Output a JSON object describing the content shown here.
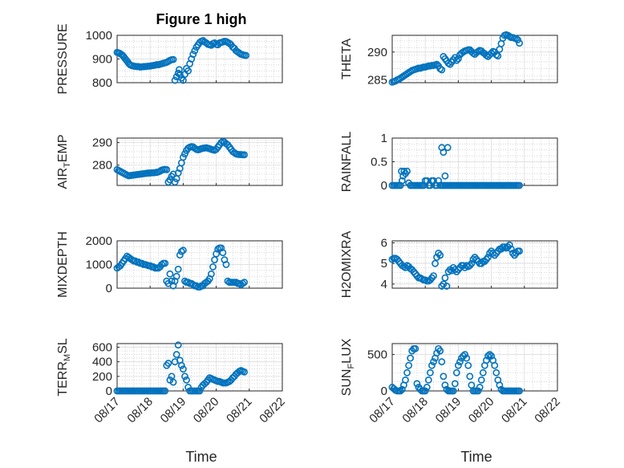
{
  "chart_data": [
    {
      "type": "scatter",
      "title": "Figure 1 high",
      "ylabel": "PRESSURE",
      "xlim": [
        0,
        5
      ],
      "ylim": [
        800,
        1000
      ],
      "yticks": [
        800,
        900,
        1000
      ],
      "xticks": [
        0,
        1,
        2,
        3,
        4,
        5
      ],
      "x": [
        0.0,
        0.04,
        0.08,
        0.12,
        0.16,
        0.2,
        0.24,
        0.28,
        0.32,
        0.36,
        0.4,
        0.45,
        0.5,
        0.55,
        0.6,
        0.65,
        0.7,
        0.75,
        0.8,
        0.85,
        0.9,
        0.95,
        1.0,
        1.05,
        1.1,
        1.15,
        1.2,
        1.25,
        1.3,
        1.35,
        1.4,
        1.45,
        1.5,
        1.55,
        1.6,
        1.65,
        1.7,
        1.75,
        1.8,
        1.85,
        1.88,
        1.9,
        1.95,
        2.0,
        2.05,
        2.1,
        2.15,
        2.2,
        2.25,
        2.3,
        2.35,
        2.4,
        2.45,
        2.5,
        2.55,
        2.6,
        2.65,
        2.7,
        2.75,
        2.8,
        2.85,
        2.9,
        2.95,
        3.0,
        3.05,
        3.1,
        3.15,
        3.2,
        3.25,
        3.3,
        3.35,
        3.4,
        3.45,
        3.5,
        3.55,
        3.6,
        3.65,
        3.7,
        3.75,
        3.8,
        3.85,
        3.9
      ],
      "y": [
        928,
        926,
        924,
        920,
        916,
        910,
        902,
        895,
        888,
        880,
        875,
        872,
        870,
        869,
        868,
        868,
        866,
        867,
        868,
        868,
        869,
        870,
        870,
        872,
        873,
        874,
        876,
        876,
        878,
        880,
        882,
        884,
        886,
        890,
        894,
        897,
        898,
        810,
        825,
        840,
        855,
        835,
        820,
        810,
        835,
        860,
        850,
        880,
        900,
        920,
        935,
        950,
        960,
        970,
        975,
        978,
        972,
        968,
        962,
        960,
        958,
        965,
        968,
        962,
        960,
        968,
        970,
        972,
        975,
        974,
        970,
        966,
        960,
        950,
        945,
        935,
        930,
        925,
        920,
        918,
        916,
        915
      ]
    },
    {
      "type": "scatter",
      "ylabel": "THETA",
      "xlim": [
        0,
        5
      ],
      "ylim": [
        284.5,
        293
      ],
      "yticks": [
        285,
        290
      ],
      "x": [
        0.0,
        0.05,
        0.1,
        0.15,
        0.2,
        0.25,
        0.3,
        0.35,
        0.4,
        0.45,
        0.5,
        0.55,
        0.6,
        0.65,
        0.7,
        0.75,
        0.8,
        0.85,
        0.9,
        0.95,
        1.0,
        1.05,
        1.1,
        1.15,
        1.2,
        1.25,
        1.3,
        1.35,
        1.4,
        1.45,
        1.5,
        1.55,
        1.6,
        1.65,
        1.7,
        1.75,
        1.8,
        1.85,
        1.9,
        1.95,
        2.0,
        2.05,
        2.1,
        2.15,
        2.2,
        2.25,
        2.3,
        2.35,
        2.4,
        2.45,
        2.5,
        2.55,
        2.6,
        2.65,
        2.7,
        2.75,
        2.8,
        2.85,
        2.9,
        2.95,
        3.0,
        3.05,
        3.1,
        3.15,
        3.2,
        3.25,
        3.3,
        3.35,
        3.4,
        3.45,
        3.5,
        3.55,
        3.6,
        3.65,
        3.7,
        3.75,
        3.8,
        3.85
      ],
      "y": [
        284.6,
        284.7,
        284.8,
        285.0,
        285.1,
        285.3,
        285.5,
        285.7,
        285.9,
        286.1,
        286.3,
        286.5,
        286.7,
        286.8,
        286.9,
        287.0,
        287.1,
        287.1,
        287.2,
        287.3,
        287.3,
        287.4,
        287.5,
        287.5,
        287.6,
        287.6,
        287.7,
        287.8,
        287.5,
        287.0,
        286.8,
        289.2,
        288.8,
        288.4,
        288.0,
        287.8,
        288.2,
        288.6,
        289.0,
        288.5,
        288.8,
        289.5,
        289.8,
        290.0,
        290.2,
        290.3,
        290.4,
        290.4,
        290.1,
        289.8,
        289.6,
        289.9,
        290.1,
        290.3,
        290.2,
        289.9,
        289.7,
        289.4,
        289.2,
        289.5,
        289.8,
        290.1,
        290.0,
        289.5,
        289.3,
        290.5,
        291.5,
        292.5,
        293.0,
        293.1,
        293.0,
        292.8,
        292.6,
        292.6,
        292.5,
        292.4,
        292.2,
        291.6
      ]
    },
    {
      "type": "scatter",
      "ylabel": "AIR_TEMP",
      "ylabel_main": "AIR",
      "ylabel_sub": "T",
      "ylabel_rest": "EMP",
      "xlim": [
        0,
        5
      ],
      "ylim": [
        271,
        292
      ],
      "yticks": [
        280,
        290
      ],
      "x": [
        0.0,
        0.05,
        0.1,
        0.15,
        0.2,
        0.25,
        0.3,
        0.35,
        0.4,
        0.45,
        0.5,
        0.55,
        0.6,
        0.65,
        0.7,
        0.75,
        0.8,
        0.85,
        0.9,
        0.95,
        1.0,
        1.05,
        1.1,
        1.15,
        1.2,
        1.25,
        1.3,
        1.35,
        1.4,
        1.45,
        1.5,
        1.55,
        1.6,
        1.65,
        1.7,
        1.75,
        1.8,
        1.85,
        1.9,
        1.95,
        2.0,
        2.05,
        2.1,
        2.15,
        2.2,
        2.25,
        2.3,
        2.35,
        2.4,
        2.45,
        2.5,
        2.55,
        2.6,
        2.65,
        2.7,
        2.75,
        2.8,
        2.85,
        2.9,
        2.95,
        3.0,
        3.05,
        3.1,
        3.15,
        3.2,
        3.25,
        3.3,
        3.35,
        3.4,
        3.45,
        3.5,
        3.55,
        3.6,
        3.65,
        3.7,
        3.75,
        3.8,
        3.85
      ],
      "y": [
        278.0,
        277.6,
        277.2,
        276.8,
        276.4,
        276.0,
        275.6,
        275.3,
        275.4,
        275.5,
        275.6,
        275.7,
        275.8,
        275.9,
        276.0,
        276.1,
        276.2,
        276.3,
        276.4,
        276.5,
        276.5,
        276.6,
        276.6,
        276.7,
        276.8,
        277.0,
        277.3,
        277.8,
        278.0,
        278.1,
        278.0,
        272.5,
        273.5,
        275.0,
        276.0,
        272.5,
        274.0,
        276.5,
        278.5,
        281.0,
        283.5,
        285.0,
        286.5,
        287.5,
        288.0,
        288.2,
        288.1,
        287.5,
        287.0,
        286.8,
        287.0,
        287.3,
        287.5,
        287.6,
        287.7,
        287.5,
        287.3,
        287.0,
        286.8,
        286.6,
        287.0,
        288.0,
        289.0,
        290.0,
        290.5,
        290.2,
        289.5,
        289.0,
        288.0,
        287.0,
        286.0,
        285.5,
        285.0,
        284.8,
        284.7,
        284.7,
        284.6,
        284.6
      ]
    },
    {
      "type": "scatter",
      "ylabel": "RAINFALL",
      "xlim": [
        0,
        5
      ],
      "ylim": [
        0,
        1
      ],
      "yticks": [
        0,
        0.5,
        1
      ],
      "x": [
        0.0,
        0.05,
        0.1,
        0.15,
        0.2,
        0.25,
        0.28,
        0.3,
        0.33,
        0.36,
        0.4,
        0.45,
        0.5,
        0.55,
        0.6,
        0.65,
        0.7,
        0.75,
        0.8,
        0.85,
        0.9,
        0.95,
        1.0,
        1.05,
        1.1,
        1.15,
        1.2,
        1.25,
        1.3,
        1.35,
        1.4,
        1.45,
        1.5,
        1.55,
        1.6,
        1.65,
        1.7,
        1.75,
        1.8,
        1.85,
        1.9,
        1.95,
        2.0,
        2.05,
        2.1,
        2.15,
        2.2,
        2.25,
        2.3,
        2.35,
        2.4,
        2.45,
        2.5,
        2.55,
        2.6,
        2.65,
        2.7,
        2.75,
        2.8,
        2.85,
        2.9,
        2.95,
        3.0,
        3.05,
        3.1,
        3.15,
        3.2,
        3.25,
        3.3,
        3.35,
        3.4,
        3.45,
        3.5,
        3.55,
        3.6,
        3.65,
        3.7,
        3.75,
        3.8,
        3.85,
        1.5,
        1.55,
        1.6,
        1.68
      ],
      "y": [
        0,
        0,
        0,
        0,
        0,
        0,
        0.3,
        0.1,
        0.2,
        0.3,
        0.25,
        0.3,
        0.05,
        0,
        0,
        0,
        0,
        0,
        0,
        0,
        0,
        0,
        0.1,
        0.1,
        0,
        0,
        0.1,
        0.1,
        0,
        0,
        0.1,
        0,
        0,
        0,
        0,
        0,
        0,
        0,
        0,
        0,
        0,
        0,
        0,
        0,
        0,
        0,
        0,
        0,
        0,
        0,
        0,
        0,
        0,
        0,
        0,
        0,
        0,
        0,
        0,
        0,
        0,
        0,
        0,
        0,
        0,
        0,
        0,
        0,
        0,
        0,
        0,
        0,
        0,
        0,
        0,
        0,
        0,
        0,
        0,
        0,
        0.8,
        0.7,
        0.2,
        0.8
      ]
    },
    {
      "type": "scatter",
      "ylabel": "MIXDEPTH",
      "xlim": [
        0,
        5
      ],
      "ylim": [
        0,
        2000
      ],
      "yticks": [
        0,
        1000,
        2000
      ],
      "x": [
        0.0,
        0.05,
        0.1,
        0.15,
        0.2,
        0.25,
        0.3,
        0.35,
        0.4,
        0.45,
        0.5,
        0.55,
        0.6,
        0.65,
        0.7,
        0.75,
        0.8,
        0.85,
        0.9,
        0.95,
        1.0,
        1.05,
        1.1,
        1.15,
        1.2,
        1.25,
        1.3,
        1.35,
        1.4,
        1.45,
        1.5,
        1.55,
        1.6,
        1.65,
        1.7,
        1.75,
        1.8,
        1.85,
        1.9,
        1.95,
        2.0,
        2.05,
        2.1,
        2.15,
        2.2,
        2.25,
        2.3,
        2.35,
        2.4,
        2.45,
        2.5,
        2.55,
        2.6,
        2.65,
        2.7,
        2.75,
        2.8,
        2.85,
        2.9,
        2.95,
        3.0,
        3.05,
        3.1,
        3.15,
        3.2,
        3.25,
        3.3,
        3.35,
        3.4,
        3.45,
        3.5,
        3.55,
        3.6,
        3.65,
        3.7,
        3.75,
        3.8,
        3.85
      ],
      "y": [
        850,
        900,
        950,
        1050,
        1150,
        1250,
        1350,
        1300,
        1250,
        1200,
        1150,
        1150,
        1100,
        1100,
        1050,
        1050,
        1000,
        1000,
        980,
        950,
        950,
        900,
        900,
        850,
        850,
        850,
        900,
        1000,
        1050,
        1050,
        300,
        200,
        600,
        300,
        100,
        300,
        500,
        800,
        1400,
        1550,
        1600,
        300,
        250,
        250,
        200,
        200,
        150,
        100,
        100,
        50,
        50,
        100,
        100,
        200,
        250,
        300,
        400,
        600,
        900,
        1200,
        1450,
        1650,
        1700,
        1700,
        1500,
        1200,
        1000,
        300,
        250,
        250,
        250,
        250,
        250,
        200,
        200,
        150,
        200,
        250
      ]
    },
    {
      "type": "scatter",
      "ylabel": "H2OMIXRA",
      "xlim": [
        0,
        5
      ],
      "ylim": [
        3.8,
        6.1
      ],
      "yticks": [
        4,
        5,
        6
      ],
      "x": [
        0.0,
        0.05,
        0.1,
        0.15,
        0.2,
        0.25,
        0.3,
        0.35,
        0.4,
        0.45,
        0.5,
        0.55,
        0.6,
        0.65,
        0.7,
        0.75,
        0.8,
        0.85,
        0.9,
        0.95,
        1.0,
        1.05,
        1.1,
        1.15,
        1.2,
        1.25,
        1.3,
        1.35,
        1.4,
        1.45,
        1.5,
        1.55,
        1.6,
        1.65,
        1.7,
        1.75,
        1.8,
        1.85,
        1.9,
        1.95,
        2.0,
        2.05,
        2.1,
        2.15,
        2.2,
        2.25,
        2.3,
        2.35,
        2.4,
        2.45,
        2.5,
        2.55,
        2.6,
        2.65,
        2.7,
        2.75,
        2.8,
        2.85,
        2.9,
        2.95,
        3.0,
        3.05,
        3.1,
        3.15,
        3.2,
        3.25,
        3.3,
        3.35,
        3.4,
        3.45,
        3.5,
        3.55,
        3.6,
        3.65,
        3.7,
        3.75,
        3.8,
        3.85
      ],
      "y": [
        5.2,
        5.25,
        5.25,
        5.2,
        5.1,
        5.0,
        4.9,
        4.85,
        4.8,
        4.9,
        4.85,
        4.75,
        4.7,
        4.6,
        4.5,
        4.4,
        4.3,
        4.3,
        4.25,
        4.2,
        4.2,
        4.15,
        4.15,
        4.2,
        4.3,
        4.4,
        5.0,
        5.3,
        5.5,
        5.4,
        3.9,
        4.0,
        4.3,
        3.9,
        4.6,
        4.7,
        4.65,
        4.8,
        4.7,
        4.6,
        4.7,
        4.8,
        4.9,
        4.9,
        4.8,
        4.9,
        4.85,
        4.9,
        5.0,
        5.2,
        5.3,
        5.2,
        5.1,
        5.0,
        5.0,
        5.1,
        5.1,
        5.2,
        5.3,
        5.5,
        5.6,
        5.5,
        5.4,
        5.5,
        5.6,
        5.7,
        5.7,
        5.8,
        5.8,
        5.75,
        5.8,
        5.9,
        5.7,
        5.5,
        5.4,
        5.5,
        5.6,
        5.6
      ]
    },
    {
      "type": "scatter",
      "ylabel": "TERR_MSL",
      "ylabel_main": "TERR",
      "ylabel_sub": "M",
      "ylabel_rest": "SL",
      "xlim": [
        0,
        5
      ],
      "ylim": [
        0,
        650
      ],
      "yticks": [
        0,
        200,
        400,
        600
      ],
      "xticklabels": [
        "08/17",
        "08/18",
        "08/19",
        "08/20",
        "08/21",
        "08/22"
      ],
      "xlabel": "Time",
      "x": [
        0.0,
        0.05,
        0.1,
        0.15,
        0.2,
        0.25,
        0.3,
        0.35,
        0.4,
        0.45,
        0.5,
        0.55,
        0.6,
        0.65,
        0.7,
        0.75,
        0.8,
        0.85,
        0.9,
        0.95,
        1.0,
        1.05,
        1.1,
        1.15,
        1.2,
        1.25,
        1.3,
        1.35,
        1.4,
        1.45,
        1.5,
        1.55,
        1.6,
        1.65,
        1.7,
        1.75,
        1.8,
        1.85,
        1.9,
        1.95,
        2.0,
        2.05,
        2.1,
        2.15,
        2.2,
        2.25,
        2.3,
        2.35,
        2.4,
        2.45,
        2.5,
        2.55,
        2.6,
        2.65,
        2.7,
        2.75,
        2.8,
        2.85,
        2.9,
        2.95,
        3.0,
        3.05,
        3.1,
        3.15,
        3.2,
        3.25,
        3.3,
        3.35,
        3.4,
        3.45,
        3.5,
        3.55,
        3.6,
        3.65,
        3.7,
        3.75,
        3.8,
        3.85
      ],
      "y": [
        0,
        0,
        0,
        0,
        0,
        0,
        0,
        0,
        0,
        0,
        0,
        0,
        0,
        0,
        0,
        0,
        0,
        0,
        0,
        0,
        0,
        0,
        0,
        0,
        0,
        0,
        0,
        0,
        0,
        0,
        350,
        380,
        150,
        200,
        120,
        400,
        500,
        630,
        420,
        350,
        300,
        200,
        150,
        50,
        0,
        0,
        0,
        0,
        0,
        0,
        0,
        50,
        80,
        100,
        120,
        150,
        180,
        170,
        160,
        150,
        140,
        130,
        130,
        120,
        110,
        110,
        110,
        120,
        130,
        150,
        180,
        200,
        230,
        250,
        270,
        280,
        270,
        260
      ]
    },
    {
      "type": "scatter",
      "ylabel": "SUN_FLUX",
      "ylabel_main": "SUN",
      "ylabel_sub": "F",
      "ylabel_rest": "LUX",
      "xlim": [
        0,
        5
      ],
      "ylim": [
        0,
        650
      ],
      "yticks": [
        0,
        500
      ],
      "xticklabels": [
        "08/17",
        "08/18",
        "08/19",
        "08/20",
        "08/21",
        "08/22"
      ],
      "xlabel": "Time",
      "x": [
        0.0,
        0.05,
        0.1,
        0.15,
        0.2,
        0.25,
        0.3,
        0.35,
        0.4,
        0.45,
        0.5,
        0.55,
        0.6,
        0.65,
        0.7,
        0.75,
        0.8,
        0.85,
        0.9,
        0.95,
        1.0,
        1.05,
        1.1,
        1.15,
        1.2,
        1.25,
        1.3,
        1.35,
        1.4,
        1.45,
        1.5,
        1.55,
        1.6,
        1.65,
        1.7,
        1.75,
        1.8,
        1.85,
        1.9,
        1.95,
        2.0,
        2.05,
        2.1,
        2.15,
        2.2,
        2.25,
        2.3,
        2.35,
        2.4,
        2.45,
        2.5,
        2.55,
        2.6,
        2.65,
        2.7,
        2.75,
        2.8,
        2.85,
        2.9,
        2.95,
        3.0,
        3.05,
        3.1,
        3.15,
        3.2,
        3.25,
        3.3,
        3.35,
        3.4,
        3.45,
        3.5,
        3.55,
        3.6,
        3.65,
        3.7,
        3.75,
        3.8,
        3.85
      ],
      "y": [
        50,
        30,
        10,
        0,
        0,
        0,
        20,
        80,
        150,
        250,
        350,
        450,
        550,
        580,
        580,
        100,
        50,
        20,
        0,
        0,
        0,
        50,
        150,
        250,
        350,
        400,
        450,
        520,
        580,
        550,
        400,
        200,
        80,
        20,
        0,
        0,
        0,
        0,
        100,
        250,
        350,
        400,
        450,
        480,
        500,
        450,
        350,
        200,
        80,
        0,
        0,
        0,
        0,
        50,
        150,
        250,
        350,
        420,
        480,
        500,
        480,
        420,
        350,
        250,
        150,
        80,
        20,
        0,
        0,
        0,
        0,
        0,
        0,
        0,
        0,
        0,
        0,
        0
      ]
    }
  ]
}
